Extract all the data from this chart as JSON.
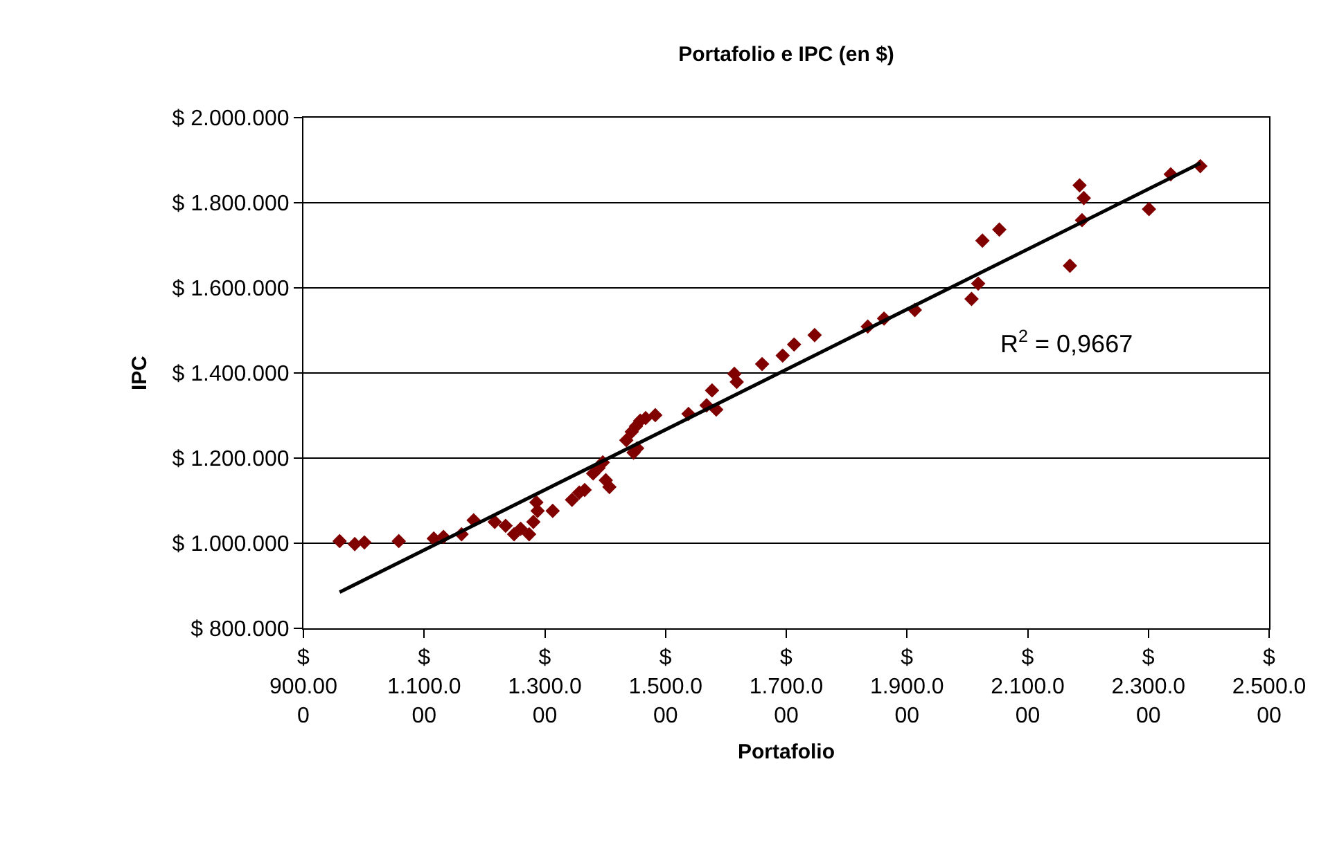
{
  "chart_data": {
    "type": "scatter",
    "title": "Portafolio e IPC (en $)",
    "xlabel": "Portafolio",
    "ylabel": "IPC",
    "series": [
      {
        "color": "#800000",
        "marker": "diamond",
        "x": [
          960000,
          985000,
          1001000,
          1058000,
          1116000,
          1132000,
          1162000,
          1182000,
          1217000,
          1235000,
          1249000,
          1260000,
          1274000,
          1281000,
          1288000,
          1286000,
          1313000,
          1345000,
          1357000,
          1366000,
          1380000,
          1389000,
          1396000,
          1401000,
          1407000,
          1435000,
          1444000,
          1451000,
          1458000,
          1467000,
          1483000,
          1447000,
          1453000,
          1538000,
          1568000,
          1577000,
          1584000,
          1614000,
          1618000,
          1660000,
          1694000,
          1713000,
          1747000,
          1835000,
          1862000,
          1913000,
          2007000,
          2018000,
          2025000,
          2053000,
          2170000,
          2186000,
          2193000,
          2190000,
          2301000,
          2337000,
          2386000
        ],
        "values": [
          1005000,
          998000,
          1002000,
          1005000,
          1011000,
          1015000,
          1021000,
          1054000,
          1050000,
          1041000,
          1021000,
          1034000,
          1021000,
          1050000,
          1076000,
          1096000,
          1076000,
          1102000,
          1119000,
          1125000,
          1164000,
          1177000,
          1190000,
          1148000,
          1132000,
          1242000,
          1262000,
          1275000,
          1288000,
          1294000,
          1301000,
          1213000,
          1223000,
          1304000,
          1324000,
          1359000,
          1314000,
          1398000,
          1379000,
          1421000,
          1441000,
          1467000,
          1489000,
          1509000,
          1528000,
          1548000,
          1574000,
          1610000,
          1711000,
          1737000,
          1652000,
          1841000,
          1811000,
          1759000,
          1785000,
          1867000,
          1886000
        ]
      },
      {
        "type": "line",
        "color": "#000000",
        "marker": "none",
        "line_style": "solid",
        "x": [
          960000,
          2386000
        ],
        "values": [
          885000,
          1893000
        ]
      }
    ],
    "annotations": [
      "R$^{2}$ = 0,9667"
    ],
    "xlim": [
      900000,
      2500000
    ],
    "xticks": [
      {
        "value": 900000,
        "label": "$ 900.000"
      },
      {
        "value": 1100000,
        "label": "$ 1.100.000"
      },
      {
        "value": 1300000,
        "label": "$ 1.300.000"
      },
      {
        "value": 1500000,
        "label": "$ 1.500.000"
      },
      {
        "value": 1700000,
        "label": "$ 1.700.000"
      },
      {
        "value": 1900000,
        "label": "$ 1.900.000"
      },
      {
        "value": 2100000,
        "label": "$ 2.100.000"
      },
      {
        "value": 2300000,
        "label": "$ 2.300.000"
      },
      {
        "value": 2500000,
        "label": "$ 2.500.000"
      }
    ],
    "ylim": [
      800000,
      2000000
    ],
    "yticks": [
      {
        "value": 800000,
        "label": "$ 800.000"
      },
      {
        "value": 1000000,
        "label": "$ 1.000.000"
      },
      {
        "value": 1200000,
        "label": "$ 1.200.000"
      },
      {
        "value": 1400000,
        "label": "$ 1.400.000"
      },
      {
        "value": 1600000,
        "label": "$ 1.600.000"
      },
      {
        "value": 1800000,
        "label": "$ 1.800.000"
      },
      {
        "value": 2000000,
        "label": "$ 2.000.000"
      }
    ],
    "grid": "y"
  }
}
